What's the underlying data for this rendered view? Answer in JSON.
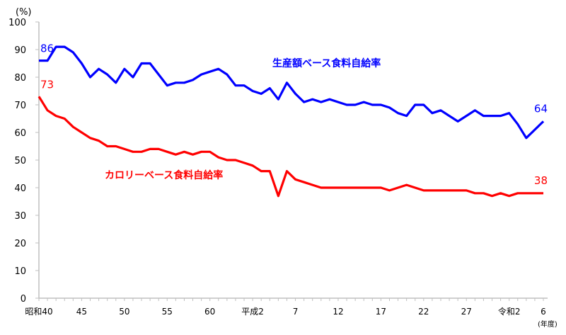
{
  "chart_data": {
    "type": "line",
    "ylabel": "(%)",
    "xlabel": "(年度)",
    "ylim": [
      0,
      100
    ],
    "yticks": [
      0,
      10,
      20,
      30,
      40,
      50,
      60,
      70,
      80,
      90,
      100
    ],
    "grid": false,
    "x": [
      1965,
      1966,
      1967,
      1968,
      1969,
      1970,
      1971,
      1972,
      1973,
      1974,
      1975,
      1976,
      1977,
      1978,
      1979,
      1980,
      1981,
      1982,
      1983,
      1984,
      1985,
      1986,
      1987,
      1988,
      1989,
      1990,
      1991,
      1992,
      1993,
      1994,
      1995,
      1996,
      1997,
      1998,
      1999,
      2000,
      2001,
      2002,
      2003,
      2004,
      2005,
      2006,
      2007,
      2008,
      2009,
      2010,
      2011,
      2012,
      2013,
      2014,
      2015,
      2016,
      2017,
      2018,
      2019,
      2020,
      2021,
      2022,
      2023,
      2024
    ],
    "xtick_labels": [
      {
        "x": 1965,
        "label": "昭和40"
      },
      {
        "x": 1970,
        "label": "45"
      },
      {
        "x": 1975,
        "label": "50"
      },
      {
        "x": 1980,
        "label": "55"
      },
      {
        "x": 1985,
        "label": "60"
      },
      {
        "x": 1990,
        "label": "平成2"
      },
      {
        "x": 1995,
        "label": "7"
      },
      {
        "x": 2000,
        "label": "12"
      },
      {
        "x": 2005,
        "label": "17"
      },
      {
        "x": 2010,
        "label": "22"
      },
      {
        "x": 2015,
        "label": "27"
      },
      {
        "x": 2020,
        "label": "令和2"
      },
      {
        "x": 2024,
        "label": "6"
      }
    ],
    "series": [
      {
        "name": "生産額ベース食料自給率",
        "color": "#0000ff",
        "start_label": "86",
        "end_label": "64",
        "values": [
          86,
          86,
          91,
          91,
          89,
          85,
          80,
          83,
          81,
          78,
          83,
          80,
          85,
          85,
          81,
          77,
          78,
          78,
          79,
          81,
          82,
          83,
          81,
          77,
          77,
          75,
          74,
          76,
          72,
          78,
          74,
          71,
          72,
          71,
          72,
          71,
          70,
          70,
          71,
          70,
          70,
          69,
          67,
          66,
          70,
          70,
          67,
          68,
          66,
          64,
          66,
          68,
          66,
          66,
          66,
          67,
          63,
          58,
          61,
          64
        ]
      },
      {
        "name": "カロリーベース食料自給率",
        "color": "#ff0000",
        "start_label": "73",
        "end_label": "38",
        "values": [
          73,
          68,
          66,
          65,
          62,
          60,
          58,
          57,
          55,
          55,
          54,
          53,
          53,
          54,
          54,
          53,
          52,
          53,
          52,
          53,
          53,
          51,
          50,
          50,
          49,
          48,
          46,
          46,
          37,
          46,
          43,
          42,
          41,
          40,
          40,
          40,
          40,
          40,
          40,
          40,
          40,
          39,
          40,
          41,
          40,
          39,
          39,
          39,
          39,
          39,
          39,
          38,
          38,
          37,
          38,
          37,
          38,
          38,
          38,
          38
        ]
      }
    ]
  }
}
